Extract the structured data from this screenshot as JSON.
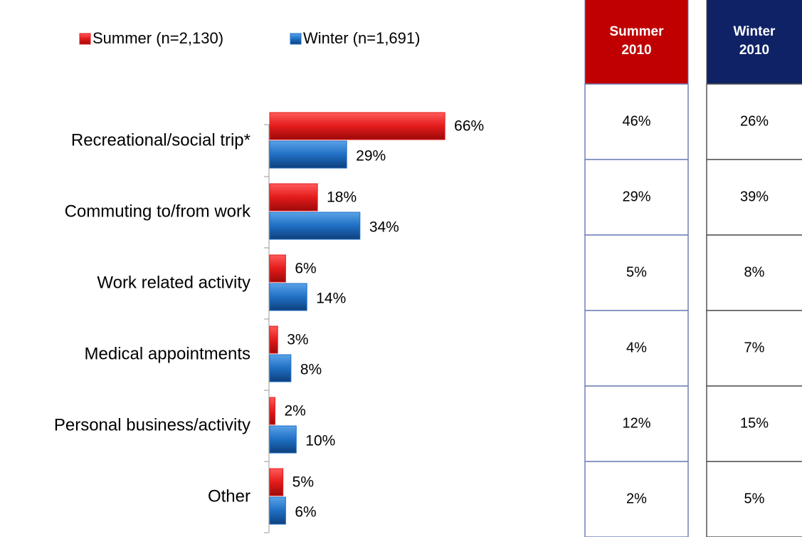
{
  "chart_data": {
    "type": "bar",
    "orientation": "horizontal",
    "categories": [
      "Recreational/social trip*",
      "Commuting to/from work",
      "Work related activity",
      "Medical appointments",
      "Personal business/activity",
      "Other"
    ],
    "series": [
      {
        "name": "Summer (n=2,130)",
        "color": "#e31b1b",
        "values": [
          66,
          18,
          6,
          3,
          2,
          5
        ],
        "value_labels": [
          "66%",
          "18%",
          "6%",
          "3%",
          "2%",
          "5%"
        ]
      },
      {
        "name": "Winter (n=1,691)",
        "color": "#1f6fc4",
        "values": [
          29,
          34,
          14,
          8,
          10,
          6
        ],
        "value_labels": [
          "29%",
          "34%",
          "14%",
          "8%",
          "10%",
          "6%"
        ]
      }
    ]
  },
  "tables": [
    {
      "header": [
        "Summer",
        "2010"
      ],
      "color": "#c00000",
      "rows": [
        "46%",
        "29%",
        "5%",
        "4%",
        "12%",
        "2%"
      ]
    },
    {
      "header": [
        "Winter",
        "2010"
      ],
      "color": "#0f2266",
      "rows": [
        "26%",
        "39%",
        "8%",
        "7%",
        "15%",
        "5%"
      ]
    }
  ]
}
